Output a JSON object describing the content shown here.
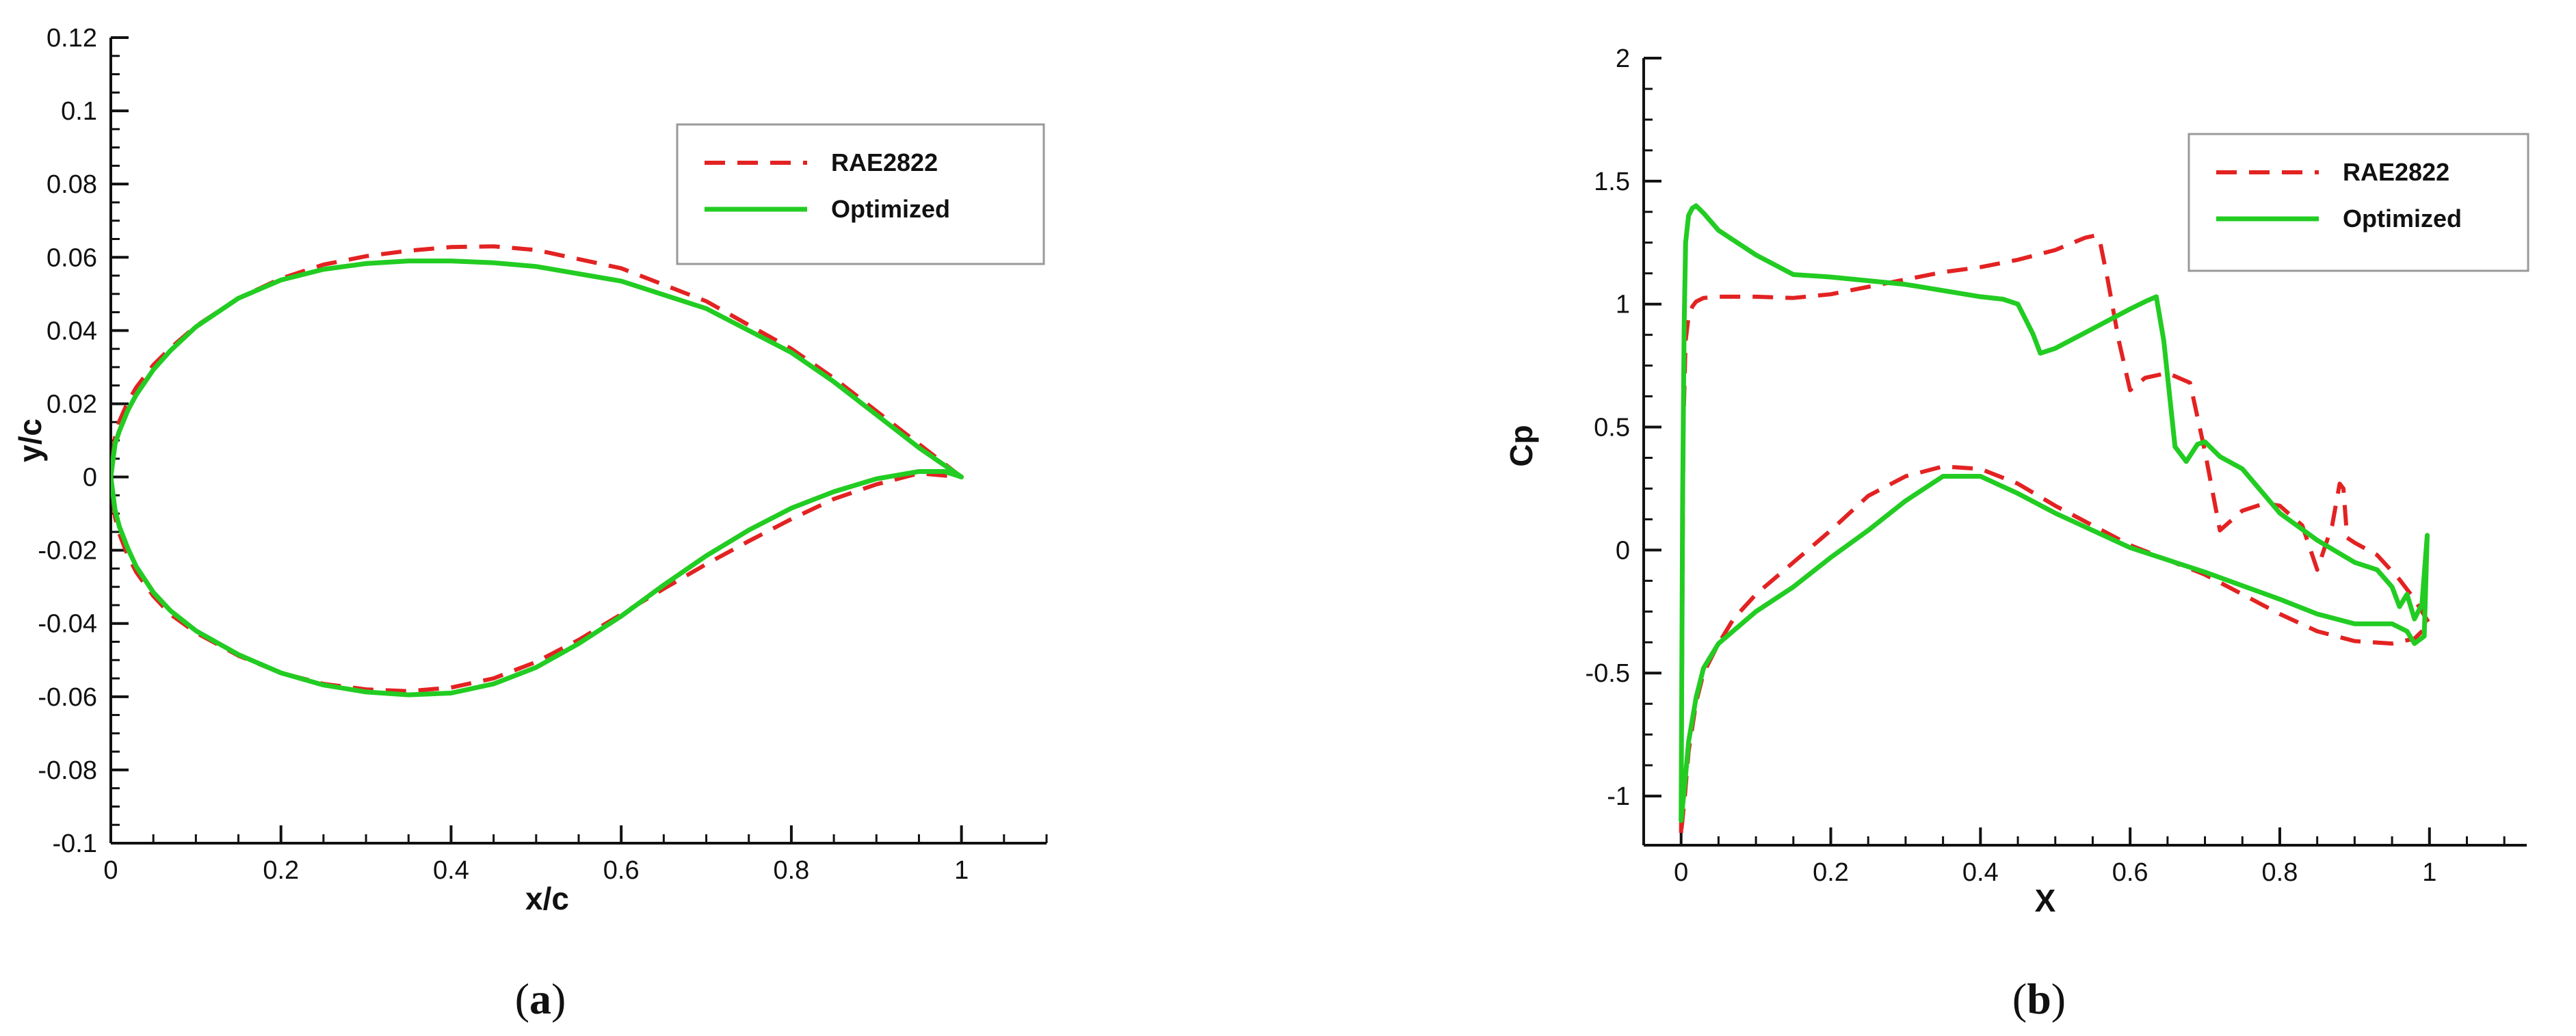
{
  "chart_data": [
    {
      "type": "line",
      "panel_label": "a",
      "xlabel": "x/c",
      "ylabel": "y/c",
      "xlim": [
        0,
        1.1
      ],
      "ylim": [
        -0.1,
        0.12
      ],
      "xticks": [
        0,
        0.2,
        0.4,
        0.6,
        0.8,
        1
      ],
      "xtick_labels": [
        "0",
        "0.2",
        "0.4",
        "0.6",
        "0.8",
        "1"
      ],
      "yticks": [
        -0.1,
        -0.08,
        -0.06,
        -0.04,
        -0.02,
        0,
        0.02,
        0.04,
        0.06,
        0.08,
        0.1,
        0.12
      ],
      "ytick_labels": [
        "-0.1",
        "-0.08",
        "-0.06",
        "-0.04",
        "-0.02",
        "0",
        "0.02",
        "0.04",
        "0.06",
        "0.08",
        "0.1",
        "0.12"
      ],
      "grid": false,
      "legend_position": "top-right",
      "series": [
        {
          "name": "RAE2822",
          "color": "#e32222",
          "style": "dashed",
          "x": [
            1.0,
            0.95,
            0.9,
            0.85,
            0.8,
            0.7,
            0.6,
            0.5,
            0.45,
            0.4,
            0.35,
            0.3,
            0.25,
            0.2,
            0.15,
            0.1,
            0.07,
            0.05,
            0.03,
            0.02,
            0.01,
            0.005,
            0.0,
            0.005,
            0.01,
            0.02,
            0.03,
            0.05,
            0.07,
            0.1,
            0.15,
            0.2,
            0.25,
            0.3,
            0.35,
            0.4,
            0.45,
            0.5,
            0.55,
            0.6,
            0.65,
            0.7,
            0.75,
            0.8,
            0.85,
            0.9,
            0.95,
            1.0
          ],
          "y": [
            0.0,
            0.009,
            0.018,
            0.027,
            0.035,
            0.048,
            0.057,
            0.062,
            0.063,
            0.0628,
            0.0618,
            0.0603,
            0.058,
            0.0542,
            0.0488,
            0.0412,
            0.0352,
            0.0306,
            0.0245,
            0.0205,
            0.0152,
            0.011,
            0.0,
            -0.011,
            -0.0155,
            -0.0215,
            -0.026,
            -0.0325,
            -0.0375,
            -0.0425,
            -0.0488,
            -0.0535,
            -0.0565,
            -0.058,
            -0.0585,
            -0.0575,
            -0.055,
            -0.0505,
            -0.0445,
            -0.0375,
            -0.0305,
            -0.0238,
            -0.0175,
            -0.0115,
            -0.006,
            -0.002,
            0.001,
            0.0
          ]
        },
        {
          "name": "Optimized",
          "color": "#22cc22",
          "style": "solid",
          "x": [
            1.0,
            0.95,
            0.9,
            0.85,
            0.8,
            0.7,
            0.6,
            0.5,
            0.45,
            0.4,
            0.35,
            0.3,
            0.25,
            0.2,
            0.15,
            0.1,
            0.07,
            0.05,
            0.03,
            0.02,
            0.01,
            0.005,
            0.0,
            0.005,
            0.01,
            0.02,
            0.03,
            0.05,
            0.07,
            0.1,
            0.15,
            0.2,
            0.25,
            0.3,
            0.35,
            0.4,
            0.45,
            0.5,
            0.55,
            0.6,
            0.65,
            0.7,
            0.75,
            0.8,
            0.85,
            0.9,
            0.95,
            0.98,
            1.0
          ],
          "y": [
            0.0,
            0.008,
            0.017,
            0.026,
            0.034,
            0.046,
            0.0535,
            0.0575,
            0.0585,
            0.059,
            0.059,
            0.0583,
            0.0567,
            0.0538,
            0.0488,
            0.041,
            0.0345,
            0.0293,
            0.0225,
            0.0182,
            0.0125,
            0.009,
            0.0,
            -0.009,
            -0.0135,
            -0.0195,
            -0.0245,
            -0.0315,
            -0.0365,
            -0.042,
            -0.0485,
            -0.0535,
            -0.0568,
            -0.0587,
            -0.0595,
            -0.059,
            -0.0565,
            -0.052,
            -0.0455,
            -0.038,
            -0.0295,
            -0.0215,
            -0.0145,
            -0.0085,
            -0.004,
            -0.0005,
            0.0015,
            0.0015,
            0.0
          ]
        }
      ]
    },
    {
      "type": "line",
      "panel_label": "b",
      "xlabel": "X",
      "ylabel": "Cp",
      "xlim": [
        -0.05,
        1.13
      ],
      "ylim": [
        -1.2,
        2.0
      ],
      "xticks": [
        0,
        0.2,
        0.4,
        0.6,
        0.8,
        1
      ],
      "xtick_labels": [
        "0",
        "0.2",
        "0.4",
        "0.6",
        "0.8",
        "1"
      ],
      "yticks": [
        -1,
        -0.5,
        0,
        0.5,
        1,
        1.5,
        2
      ],
      "ytick_labels": [
        "-1",
        "-0.5",
        "0",
        "0.5",
        "1",
        "1.5",
        "2"
      ],
      "grid": false,
      "legend_position": "top-right",
      "series": [
        {
          "name": "RAE2822",
          "color": "#e32222",
          "style": "dashed",
          "x": [
            0.0,
            0.003,
            0.006,
            0.01,
            0.015,
            0.02,
            0.03,
            0.05,
            0.1,
            0.15,
            0.2,
            0.25,
            0.3,
            0.35,
            0.4,
            0.45,
            0.5,
            0.54,
            0.555,
            0.56,
            0.57,
            0.585,
            0.6,
            0.62,
            0.65,
            0.68,
            0.7,
            0.72,
            0.75,
            0.78,
            0.8,
            0.83,
            0.85,
            0.87,
            0.88,
            0.885,
            0.89,
            0.9,
            0.93,
            0.96,
            0.98,
            0.99,
            1.0,
            0.98,
            0.95,
            0.9,
            0.85,
            0.8,
            0.7,
            0.6,
            0.5,
            0.45,
            0.4,
            0.35,
            0.3,
            0.25,
            0.2,
            0.15,
            0.1,
            0.07,
            0.05,
            0.03,
            0.02,
            0.01,
            0.005,
            0.0
          ],
          "y": [
            -1.15,
            0.5,
            0.85,
            0.95,
            0.99,
            1.01,
            1.025,
            1.03,
            1.03,
            1.025,
            1.04,
            1.07,
            1.1,
            1.13,
            1.15,
            1.18,
            1.22,
            1.27,
            1.28,
            1.25,
            1.1,
            0.85,
            0.65,
            0.7,
            0.72,
            0.68,
            0.4,
            0.08,
            0.16,
            0.19,
            0.18,
            0.1,
            -0.08,
            0.1,
            0.27,
            0.25,
            0.05,
            0.03,
            -0.02,
            -0.12,
            -0.2,
            -0.25,
            -0.3,
            -0.36,
            -0.38,
            -0.37,
            -0.33,
            -0.26,
            -0.1,
            0.02,
            0.18,
            0.27,
            0.33,
            0.34,
            0.3,
            0.22,
            0.08,
            -0.05,
            -0.18,
            -0.28,
            -0.38,
            -0.5,
            -0.62,
            -0.82,
            -1.0,
            -1.15
          ]
        },
        {
          "name": "Optimized",
          "color": "#22cc22",
          "style": "solid",
          "x": [
            0.0,
            0.002,
            0.004,
            0.006,
            0.01,
            0.015,
            0.02,
            0.03,
            0.05,
            0.1,
            0.15,
            0.2,
            0.3,
            0.4,
            0.43,
            0.45,
            0.47,
            0.48,
            0.5,
            0.55,
            0.6,
            0.62,
            0.635,
            0.645,
            0.66,
            0.675,
            0.69,
            0.7,
            0.72,
            0.75,
            0.8,
            0.85,
            0.9,
            0.93,
            0.95,
            0.96,
            0.97,
            0.98,
            0.99,
            0.993,
            0.997,
            0.993,
            0.98,
            0.97,
            0.95,
            0.9,
            0.85,
            0.8,
            0.7,
            0.6,
            0.5,
            0.45,
            0.4,
            0.35,
            0.3,
            0.25,
            0.2,
            0.15,
            0.1,
            0.05,
            0.03,
            0.02,
            0.01,
            0.005,
            0.0
          ],
          "y": [
            -1.1,
            0.2,
            0.9,
            1.25,
            1.36,
            1.39,
            1.4,
            1.37,
            1.3,
            1.2,
            1.12,
            1.11,
            1.08,
            1.03,
            1.02,
            1.0,
            0.88,
            0.8,
            0.82,
            0.9,
            0.98,
            1.01,
            1.03,
            0.85,
            0.42,
            0.36,
            0.43,
            0.44,
            0.38,
            0.33,
            0.15,
            0.04,
            -0.05,
            -0.08,
            -0.15,
            -0.23,
            -0.18,
            -0.28,
            -0.22,
            -0.1,
            0.06,
            -0.35,
            -0.38,
            -0.33,
            -0.3,
            -0.3,
            -0.26,
            -0.2,
            -0.09,
            0.01,
            0.15,
            0.23,
            0.3,
            0.3,
            0.2,
            0.08,
            -0.03,
            -0.15,
            -0.25,
            -0.38,
            -0.48,
            -0.6,
            -0.78,
            -0.95,
            -1.1
          ]
        }
      ]
    }
  ],
  "captions": {
    "a": {
      "open": "(",
      "letter": "a",
      "close": ")"
    },
    "b": {
      "open": "(",
      "letter": "b",
      "close": ")"
    }
  }
}
